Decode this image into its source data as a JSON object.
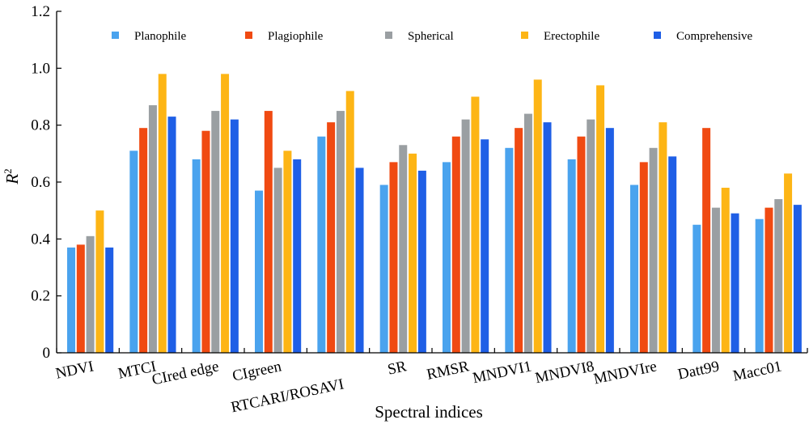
{
  "chart_data": {
    "type": "bar",
    "xlabel": "Spectral indices",
    "ylabel": "R",
    "ylabel_superscript": "2",
    "ylim": [
      0,
      1.2
    ],
    "yticks": [
      "0",
      "0.2",
      "0.4",
      "0.6",
      "0.8",
      "1.0",
      "1.2"
    ],
    "yticks_values": [
      0,
      0.2,
      0.4,
      0.6,
      0.8,
      1.0,
      1.2
    ],
    "legend_position": "top",
    "grid": false,
    "categories": [
      "NDVI",
      "MTCI",
      "CIred edge",
      "CIgreen",
      "RTCARI/ROSAVI",
      "SR",
      "RMSR",
      "MNDVI1",
      "MNDVI8",
      "MNDVIre",
      "Datt99",
      "Macc01"
    ],
    "series": [
      {
        "name": "Planophile",
        "color": "#4aa3ee",
        "values": [
          0.37,
          0.71,
          0.68,
          0.57,
          0.76,
          0.59,
          0.67,
          0.72,
          0.68,
          0.59,
          0.45,
          0.47
        ]
      },
      {
        "name": "Plagiophile",
        "color": "#f04a12",
        "values": [
          0.38,
          0.79,
          0.78,
          0.85,
          0.81,
          0.67,
          0.76,
          0.79,
          0.76,
          0.67,
          0.79,
          0.51
        ]
      },
      {
        "name": "Spherical",
        "color": "#9a9fa2",
        "values": [
          0.41,
          0.87,
          0.85,
          0.65,
          0.85,
          0.73,
          0.82,
          0.84,
          0.82,
          0.72,
          0.51,
          0.54
        ]
      },
      {
        "name": "Erectophile",
        "color": "#fdb515",
        "values": [
          0.5,
          0.98,
          0.98,
          0.71,
          0.92,
          0.7,
          0.9,
          0.96,
          0.94,
          0.81,
          0.58,
          0.63
        ]
      },
      {
        "name": "Comprehensive",
        "color": "#1f5fe6",
        "values": [
          0.37,
          0.83,
          0.82,
          0.68,
          0.65,
          0.64,
          0.75,
          0.81,
          0.79,
          0.69,
          0.49,
          0.52
        ]
      }
    ]
  }
}
